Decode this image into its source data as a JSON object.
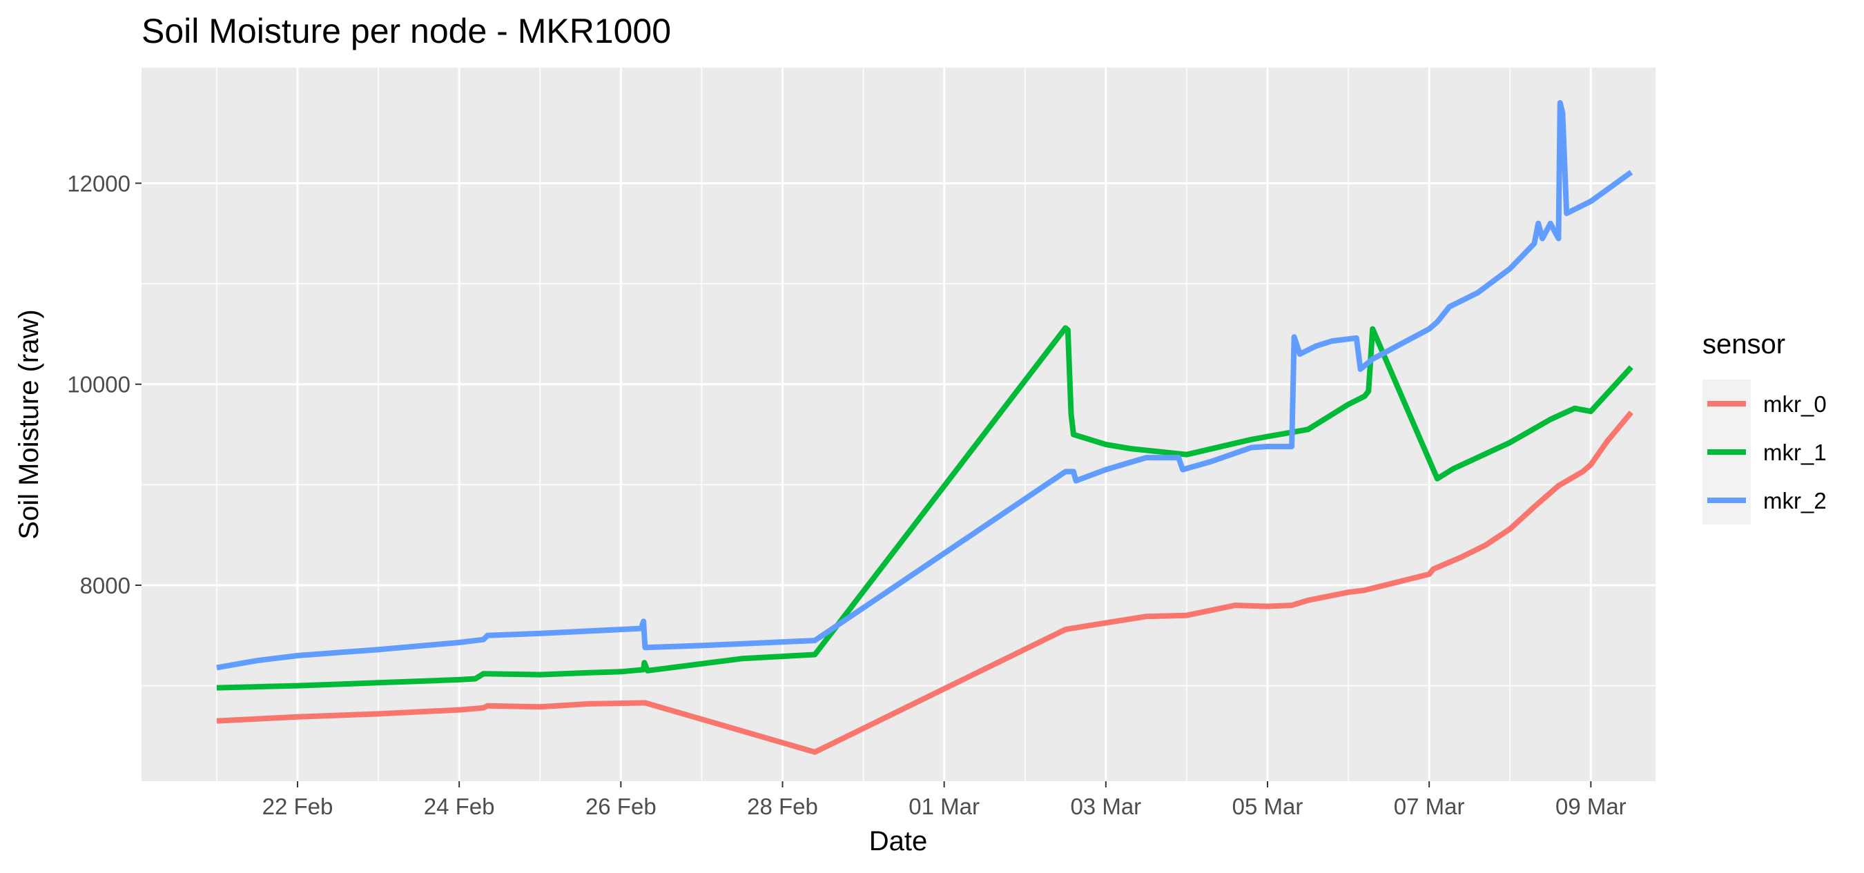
{
  "chart_data": {
    "type": "line",
    "title": "Soil Moisture per node - MKR1000",
    "xlabel": "Date",
    "ylabel": "Soil Moisture (raw)",
    "legend_title": "sensor",
    "legend_position": "right",
    "grid": true,
    "x_unit": "days",
    "x_tick_values": [
      1,
      3,
      5,
      7,
      9,
      11,
      13,
      15,
      17
    ],
    "x_tick_labels": [
      "22 Feb",
      "24 Feb",
      "26 Feb",
      "28 Feb",
      "01 Mar",
      "03 Mar",
      "05 Mar",
      "07 Mar",
      "09 Mar"
    ],
    "x_minor_values": [
      0,
      2,
      4,
      6,
      8,
      10,
      12,
      14,
      16
    ],
    "xlim": [
      -0.93,
      17.8
    ],
    "y_tick_values": [
      8000,
      10000,
      12000
    ],
    "y_tick_labels": [
      "8000",
      "10000",
      "12000"
    ],
    "y_minor_values": [
      7000,
      9000,
      11000
    ],
    "ylim": [
      6050,
      13150
    ],
    "series": [
      {
        "name": "mkr_0",
        "color": "#F8766D",
        "points": [
          [
            0,
            6650
          ],
          [
            1,
            6690
          ],
          [
            2,
            6720
          ],
          [
            3,
            6760
          ],
          [
            3.3,
            6780
          ],
          [
            3.35,
            6800
          ],
          [
            4,
            6790
          ],
          [
            4.6,
            6820
          ],
          [
            5.3,
            6830
          ],
          [
            7.4,
            6340
          ],
          [
            10.5,
            7560
          ],
          [
            10.8,
            7600
          ],
          [
            11.5,
            7690
          ],
          [
            12.0,
            7700
          ],
          [
            12.6,
            7800
          ],
          [
            13.0,
            7790
          ],
          [
            13.3,
            7800
          ],
          [
            13.5,
            7850
          ],
          [
            14.0,
            7930
          ],
          [
            14.2,
            7950
          ],
          [
            15.0,
            8110
          ],
          [
            15.05,
            8160
          ],
          [
            15.4,
            8280
          ],
          [
            15.7,
            8400
          ],
          [
            16.0,
            8560
          ],
          [
            16.3,
            8780
          ],
          [
            16.6,
            8990
          ],
          [
            16.9,
            9130
          ],
          [
            17.0,
            9200
          ],
          [
            17.2,
            9430
          ],
          [
            17.5,
            9720
          ]
        ]
      },
      {
        "name": "mkr_1",
        "color": "#00BA38",
        "points": [
          [
            0,
            6980
          ],
          [
            1,
            7000
          ],
          [
            2,
            7030
          ],
          [
            3,
            7060
          ],
          [
            3.2,
            7070
          ],
          [
            3.3,
            7120
          ],
          [
            4,
            7110
          ],
          [
            4.6,
            7130
          ],
          [
            5.0,
            7140
          ],
          [
            5.28,
            7160
          ],
          [
            5.29,
            7230
          ],
          [
            5.33,
            7150
          ],
          [
            6.5,
            7270
          ],
          [
            7.4,
            7310
          ],
          [
            10.5,
            10560
          ],
          [
            10.53,
            10540
          ],
          [
            10.57,
            9700
          ],
          [
            10.6,
            9500
          ],
          [
            10.8,
            9450
          ],
          [
            11.0,
            9400
          ],
          [
            11.3,
            9360
          ],
          [
            12.0,
            9300
          ],
          [
            12.8,
            9450
          ],
          [
            13.0,
            9480
          ],
          [
            13.5,
            9550
          ],
          [
            14.0,
            9800
          ],
          [
            14.2,
            9880
          ],
          [
            14.25,
            9930
          ],
          [
            14.3,
            10550
          ],
          [
            15.1,
            9060
          ],
          [
            15.3,
            9160
          ],
          [
            16.0,
            9420
          ],
          [
            16.5,
            9650
          ],
          [
            16.8,
            9760
          ],
          [
            17.0,
            9730
          ],
          [
            17.5,
            10170
          ]
        ]
      },
      {
        "name": "mkr_2",
        "color": "#619CFF",
        "points": [
          [
            0,
            7180
          ],
          [
            0.5,
            7250
          ],
          [
            1,
            7300
          ],
          [
            2,
            7360
          ],
          [
            3,
            7430
          ],
          [
            3.3,
            7460
          ],
          [
            3.35,
            7500
          ],
          [
            4,
            7520
          ],
          [
            5.0,
            7560
          ],
          [
            5.25,
            7570
          ],
          [
            5.28,
            7640
          ],
          [
            5.3,
            7380
          ],
          [
            6,
            7400
          ],
          [
            7.4,
            7450
          ],
          [
            10.5,
            9130
          ],
          [
            10.6,
            9130
          ],
          [
            10.63,
            9040
          ],
          [
            11.0,
            9150
          ],
          [
            11.5,
            9270
          ],
          [
            11.9,
            9270
          ],
          [
            11.95,
            9150
          ],
          [
            12.3,
            9230
          ],
          [
            12.8,
            9370
          ],
          [
            13.0,
            9380
          ],
          [
            13.3,
            9380
          ],
          [
            13.33,
            10470
          ],
          [
            13.4,
            10300
          ],
          [
            13.6,
            10380
          ],
          [
            13.8,
            10430
          ],
          [
            14.1,
            10460
          ],
          [
            14.15,
            10150
          ],
          [
            14.3,
            10250
          ],
          [
            15.0,
            10550
          ],
          [
            15.1,
            10620
          ],
          [
            15.25,
            10770
          ],
          [
            15.6,
            10910
          ],
          [
            16.0,
            11150
          ],
          [
            16.3,
            11400
          ],
          [
            16.35,
            11600
          ],
          [
            16.4,
            11450
          ],
          [
            16.5,
            11600
          ],
          [
            16.6,
            11450
          ],
          [
            16.62,
            12800
          ],
          [
            16.65,
            12700
          ],
          [
            16.7,
            11700
          ],
          [
            17.0,
            11820
          ],
          [
            17.5,
            12110
          ]
        ]
      }
    ]
  }
}
